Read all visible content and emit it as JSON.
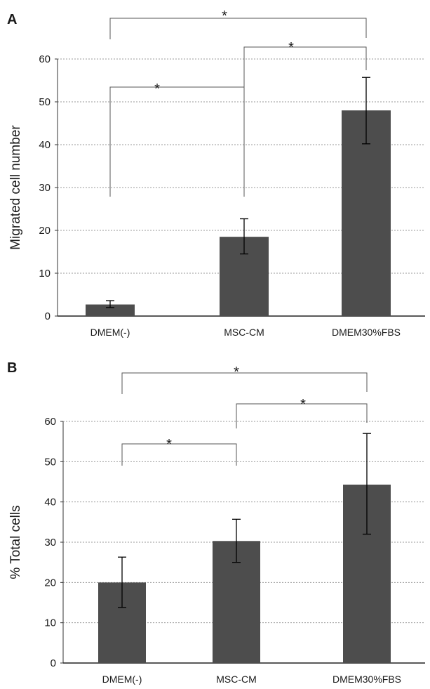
{
  "figure": {
    "panel_letters": [
      "A",
      "B"
    ]
  },
  "chart_data": [
    {
      "type": "bar",
      "panel": "A",
      "title": "",
      "xlabel": "",
      "ylabel": "Migrated cell number",
      "categories": [
        "DMEM(-)",
        "MSC-CM",
        "DMEM30%FBS"
      ],
      "values": [
        2.7,
        18.5,
        48
      ],
      "error_bars": [
        [
          2.0,
          3.6
        ],
        [
          14.5,
          22.7
        ],
        [
          40.2,
          55.7
        ]
      ],
      "ylim": [
        0,
        60
      ],
      "yticks": [
        0,
        10,
        20,
        30,
        40,
        50,
        60
      ],
      "grid": true,
      "bar_color": "#4d4d4d",
      "significance": [
        {
          "from": 0,
          "to": 1,
          "label": "*"
        },
        {
          "from": 1,
          "to": 2,
          "label": "*"
        },
        {
          "from": 0,
          "to": 2,
          "label": "*"
        }
      ]
    },
    {
      "type": "bar",
      "panel": "B",
      "title": "",
      "xlabel": "",
      "ylabel": "% Total cells",
      "categories": [
        "DMEM(-)",
        "MSC-CM",
        "DMEM30%FBS"
      ],
      "values": [
        20,
        30.3,
        44.3
      ],
      "error_bars": [
        [
          13.8,
          26.3
        ],
        [
          25,
          35.7
        ],
        [
          32,
          57
        ]
      ],
      "ylim": [
        0,
        60
      ],
      "yticks": [
        0,
        10,
        20,
        30,
        40,
        50,
        60
      ],
      "grid": true,
      "bar_color": "#4d4d4d",
      "significance": [
        {
          "from": 0,
          "to": 1,
          "label": "*"
        },
        {
          "from": 1,
          "to": 2,
          "label": "*"
        },
        {
          "from": 0,
          "to": 2,
          "label": "*"
        }
      ]
    }
  ]
}
